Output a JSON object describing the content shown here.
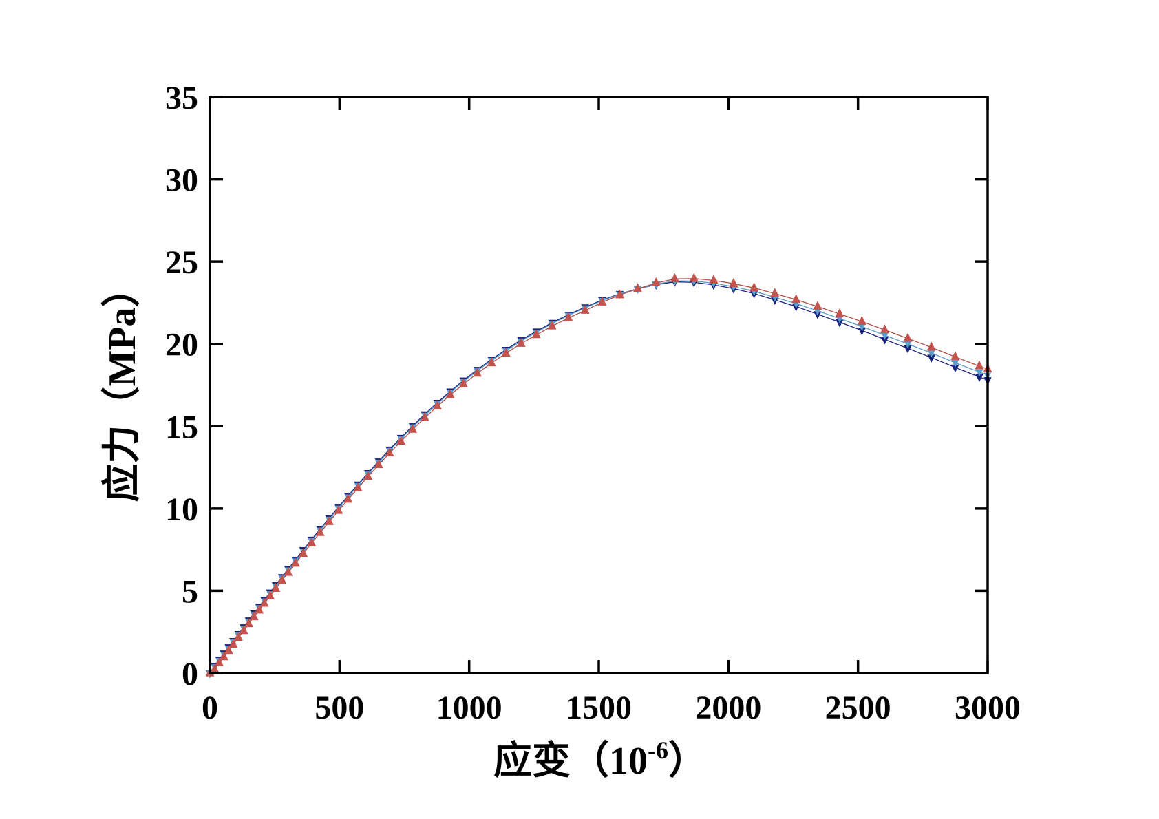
{
  "chart_data": {
    "type": "line",
    "title": "",
    "xlabel": {
      "prefix": "应变（10",
      "superscript": "-6",
      "suffix": "）"
    },
    "ylabel": "应力（MPa）",
    "xlim": [
      0,
      3000
    ],
    "ylim": [
      0,
      35
    ],
    "x_ticks": [
      0,
      500,
      1000,
      1500,
      2000,
      2500,
      3000
    ],
    "y_ticks": [
      0,
      5,
      10,
      15,
      20,
      25,
      30,
      35
    ],
    "grid": false,
    "legend": "none",
    "frame": true,
    "ticks": "inward-all-four-sides",
    "axis_color": "#000000",
    "x": [
      0,
      18,
      36,
      54,
      72,
      90,
      110,
      130,
      150,
      170,
      190,
      210,
      232,
      254,
      278,
      302,
      330,
      360,
      392,
      425,
      460,
      496,
      533,
      571,
      610,
      651,
      693,
      737,
      782,
      829,
      877,
      927,
      978,
      1031,
      1086,
      1142,
      1200,
      1259,
      1320,
      1383,
      1447,
      1513,
      1581,
      1650,
      1721,
      1793,
      1867,
      1943,
      2020,
      2099,
      2179,
      2261,
      2344,
      2429,
      2515,
      2603,
      2692,
      2783,
      2875,
      2968,
      3000
    ],
    "series": [
      {
        "name": "navy-down-triangles",
        "marker": "triangle-down",
        "marker_size": 11.5,
        "color": "#19227d",
        "line_color": "#19227d",
        "values": [
          0,
          0.45,
          0.83,
          1.2,
          1.58,
          1.96,
          2.38,
          2.79,
          3.21,
          3.63,
          4.04,
          4.45,
          4.9,
          5.35,
          5.84,
          6.33,
          6.88,
          7.48,
          8.11,
          8.75,
          9.41,
          10.09,
          10.77,
          11.46,
          12.16,
          12.87,
          13.59,
          14.3,
          15.02,
          15.73,
          16.43,
          17.12,
          17.78,
          18.43,
          19.06,
          19.65,
          20.24,
          20.76,
          21.29,
          21.78,
          22.23,
          22.67,
          23.04,
          23.35,
          23.6,
          23.77,
          23.74,
          23.59,
          23.36,
          23.06,
          22.68,
          22.27,
          21.81,
          21.32,
          20.82,
          20.27,
          19.73,
          19.17,
          18.57,
          17.99,
          17.8
        ]
      },
      {
        "name": "lightblue-down-triangles",
        "marker": "triangle-down",
        "marker_size": 10.5,
        "color": "#5b9ec9",
        "line_color": "#5b9ec9",
        "values": [
          0,
          0.38,
          0.76,
          1.13,
          1.51,
          1.89,
          2.31,
          2.72,
          3.14,
          3.56,
          3.97,
          4.38,
          4.83,
          5.28,
          5.77,
          6.26,
          6.81,
          7.41,
          8.04,
          8.68,
          9.34,
          10.02,
          10.7,
          11.39,
          12.09,
          12.8,
          13.52,
          14.23,
          14.95,
          15.66,
          16.36,
          17.05,
          17.71,
          18.36,
          18.99,
          19.58,
          20.17,
          20.7,
          21.23,
          21.73,
          22.18,
          22.63,
          23.02,
          23.35,
          23.63,
          23.83,
          23.82,
          23.69,
          23.48,
          23.2,
          22.84,
          22.45,
          22.01,
          21.54,
          21.06,
          20.53,
          20.0,
          19.45,
          18.86,
          18.29,
          18.1
        ]
      },
      {
        "name": "red-up-triangles",
        "marker": "triangle-up",
        "marker_size": 13,
        "color": "#c4534e",
        "line_color": "#b14c46",
        "values": [
          0,
          0.23,
          0.61,
          0.98,
          1.36,
          1.74,
          2.16,
          2.57,
          2.99,
          3.41,
          3.82,
          4.23,
          4.68,
          5.13,
          5.62,
          6.11,
          6.66,
          7.26,
          7.89,
          8.53,
          9.19,
          9.87,
          10.55,
          11.24,
          11.94,
          12.65,
          13.37,
          14.08,
          14.8,
          15.51,
          16.21,
          16.9,
          17.56,
          18.21,
          18.84,
          19.43,
          20.02,
          20.55,
          21.08,
          21.58,
          22.03,
          22.53,
          22.97,
          23.35,
          23.7,
          23.95,
          23.97,
          23.86,
          23.66,
          23.4,
          23.06,
          22.69,
          22.27,
          21.82,
          21.36,
          20.85,
          20.33,
          19.79,
          19.21,
          18.65,
          18.47
        ]
      }
    ]
  }
}
